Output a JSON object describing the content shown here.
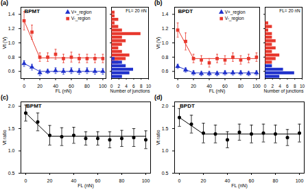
{
  "chart_data": [
    {
      "type": "scatter",
      "panel": "(a)",
      "title": "BPMT",
      "x_label": "FL (nN)",
      "y_label": "Vt (V)",
      "x": [
        0,
        10,
        20,
        30,
        40,
        50,
        60,
        70,
        80,
        90,
        100
      ],
      "xlim": [
        -4,
        104
      ],
      "xticks": [
        0,
        20,
        40,
        60,
        80,
        100
      ],
      "ylim": [
        0.5,
        1.5
      ],
      "yticks": [
        0.6,
        0.8,
        {
          "value": 1,
          "label": "1.0"
        },
        1.2,
        1.4
      ],
      "legend": "top right",
      "series": [
        {
          "name": "V+_region",
          "color": "#2233cc",
          "marker": "triangle",
          "values": [
            0.71,
            0.66,
            0.58,
            0.6,
            0.61,
            0.6,
            0.61,
            0.6,
            0.61,
            0.6,
            0.6
          ],
          "errors": [
            0.04,
            0.04,
            0.04,
            0.03,
            0.04,
            0.04,
            0.04,
            0.04,
            0.04,
            0.04,
            0.04
          ],
          "fit": {
            "x": [
              0,
              20,
              100
            ],
            "values": [
              0.71,
              0.6,
              0.6
            ]
          }
        },
        {
          "name": "V-_region",
          "color": "#e8392e",
          "marker": "square",
          "values": [
            1.31,
            1.15,
            0.8,
            0.8,
            0.84,
            0.78,
            0.8,
            0.78,
            0.78,
            0.78,
            0.78
          ],
          "errors": [
            0.13,
            0.1,
            0.06,
            0.06,
            0.07,
            0.06,
            0.07,
            0.06,
            0.06,
            0.06,
            0.06
          ],
          "fit": {
            "x": [
              0,
              20,
              100
            ],
            "values": [
              1.31,
              0.79,
              0.79
            ]
          }
        }
      ],
      "histogram": {
        "annotation": "FL= 20 nN",
        "x_label": "Number of junctions",
        "xlim": [
          0,
          10
        ],
        "xticks": [
          0,
          2,
          4,
          6,
          8,
          10
        ],
        "tick_labels": "x",
        "series": [
          {
            "color": "#e8392e",
            "bins": [
              0.7,
              0.75,
              0.8,
              0.85,
              0.9,
              0.95,
              1.0,
              1.05,
              1.1,
              1.15,
              1.2,
              1.25,
              1.3,
              1.35,
              1.4,
              1.45
            ],
            "counts": [
              2,
              4,
              5,
              3,
              2,
              3,
              4,
              3,
              8,
              3,
              2,
              1,
              2,
              1,
              1
            ]
          },
          {
            "color": "#2233cc",
            "bins": [
              0.5,
              0.55,
              0.6,
              0.65,
              0.7,
              0.75,
              0.8
            ],
            "counts": [
              3,
              5,
              6,
              4,
              3,
              1
            ]
          }
        ]
      }
    },
    {
      "type": "scatter",
      "panel": "(b)",
      "title": "BPDT",
      "x_label": "FL (nN)",
      "y_label": "Vt (V)",
      "x": [
        0,
        10,
        20,
        30,
        40,
        50,
        60,
        70,
        80,
        90,
        100
      ],
      "xlim": [
        -4,
        104
      ],
      "xticks": [
        0,
        20,
        40,
        60,
        80,
        100
      ],
      "ylim": [
        0.5,
        1.5
      ],
      "yticks": [
        0.6,
        0.8,
        {
          "value": 1,
          "label": "1.0"
        },
        1.2,
        1.4
      ],
      "legend": "top right",
      "series": [
        {
          "name": "V+_region",
          "color": "#2233cc",
          "marker": "triangle",
          "values": [
            0.67,
            0.62,
            0.58,
            0.57,
            0.57,
            0.57,
            0.58,
            0.58,
            0.58,
            0.57,
            0.58
          ],
          "errors": [
            0.03,
            0.03,
            0.03,
            0.03,
            0.03,
            0.03,
            0.03,
            0.03,
            0.03,
            0.03,
            0.03
          ],
          "fit": {
            "x": [
              0,
              20,
              100
            ],
            "values": [
              0.67,
              0.58,
              0.58
            ]
          }
        },
        {
          "name": "V-_region",
          "color": "#e8392e",
          "marker": "square",
          "values": [
            1.18,
            1.02,
            0.78,
            0.76,
            0.72,
            0.78,
            0.76,
            0.8,
            0.76,
            0.78,
            0.8
          ],
          "errors": [
            0.1,
            0.12,
            0.06,
            0.06,
            0.06,
            0.06,
            0.06,
            0.06,
            0.06,
            0.06,
            0.06
          ],
          "fit": {
            "x": [
              0,
              20,
              100
            ],
            "values": [
              1.19,
              0.78,
              0.78
            ]
          }
        }
      ],
      "histogram": {
        "annotation": "FL= 20 nN",
        "x_label": "Number of junctions",
        "xlim": [
          0,
          10
        ],
        "xticks": [
          0,
          2,
          4,
          6,
          8,
          10
        ],
        "tick_labels": "x",
        "series": [
          {
            "color": "#e8392e",
            "bins": [
              0.7,
              0.75,
              0.8,
              0.85,
              0.9,
              0.95,
              1.0,
              1.05,
              1.1,
              1.15,
              1.2,
              1.25,
              1.3
            ],
            "counts": [
              2,
              3,
              4,
              2,
              3,
              2,
              3,
              2,
              2,
              1,
              2,
              1
            ]
          },
          {
            "color": "#2233cc",
            "bins": [
              0.5,
              0.55,
              0.6,
              0.65,
              0.7
            ],
            "counts": [
              4,
              8,
              5,
              2
            ]
          }
        ]
      }
    },
    {
      "type": "scatter",
      "panel": "(c)",
      "title": "BPMT",
      "x_label": "FL (nN)",
      "y_label": "Vt ratio",
      "x": [
        0,
        10,
        20,
        30,
        40,
        50,
        60,
        70,
        80,
        90,
        100
      ],
      "xlim": [
        -4,
        104
      ],
      "xticks": [
        0,
        20,
        40,
        60,
        80,
        100
      ],
      "ylim": [
        0.5,
        2.1
      ],
      "yticks": [
        0.5,
        {
          "value": 1,
          "label": "1.0"
        },
        1.5,
        {
          "value": 2,
          "label": "2.0"
        }
      ],
      "series": [
        {
          "color": "#000000",
          "marker": "circle",
          "values": [
            1.85,
            1.65,
            1.35,
            1.32,
            1.35,
            1.28,
            1.28,
            1.25,
            1.28,
            1.3,
            1.25
          ],
          "errors": [
            0.18,
            0.2,
            0.22,
            0.2,
            0.18,
            0.15,
            0.15,
            0.18,
            0.18,
            0.2,
            0.2
          ],
          "fit": {
            "x": [
              0,
              20,
              100
            ],
            "values": [
              1.85,
              1.33,
              1.33
            ]
          }
        }
      ]
    },
    {
      "type": "scatter",
      "panel": "(d)",
      "title": "BPDT",
      "x_label": "FL (nN)",
      "y_label": "Vt ratio",
      "x": [
        0,
        10,
        20,
        30,
        40,
        50,
        60,
        70,
        80,
        90,
        100
      ],
      "xlim": [
        -4,
        104
      ],
      "xticks": [
        0,
        20,
        40,
        60,
        80,
        100
      ],
      "ylim": [
        0.5,
        2.1
      ],
      "yticks": [
        0.5,
        {
          "value": 1,
          "label": "1.0"
        },
        1.5,
        {
          "value": 2,
          "label": "2.0"
        }
      ],
      "series": [
        {
          "color": "#000000",
          "marker": "circle",
          "values": [
            1.75,
            1.6,
            1.4,
            1.38,
            1.25,
            1.42,
            1.38,
            1.4,
            1.38,
            1.3,
            1.4
          ],
          "errors": [
            0.2,
            0.2,
            0.22,
            0.2,
            0.18,
            0.18,
            0.2,
            0.2,
            0.2,
            0.18,
            0.2
          ],
          "fit": {
            "x": [
              0,
              20,
              100
            ],
            "values": [
              1.75,
              1.38,
              1.38
            ]
          }
        }
      ]
    }
  ]
}
